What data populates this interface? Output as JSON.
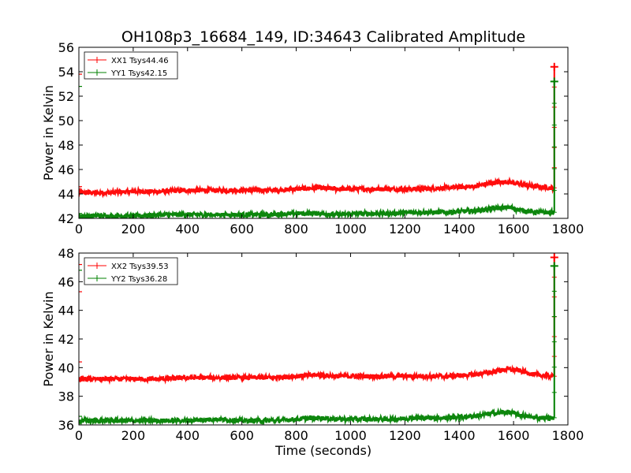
{
  "figure": {
    "title": "OH108p3_16684_149, ID:34643 Calibrated Amplitude",
    "xlabel": "Time (seconds)"
  },
  "colors": {
    "xx": "#ff0000",
    "yy": "#008000"
  },
  "chart_data": [
    {
      "type": "line",
      "ylabel": "Power in Kelvin",
      "xlim": [
        0,
        1800
      ],
      "ylim": [
        42,
        56
      ],
      "xticks": [
        "0",
        "200",
        "400",
        "600",
        "800",
        "1000",
        "1200",
        "1400",
        "1600",
        "1800"
      ],
      "yticks": [
        "42",
        "44",
        "46",
        "48",
        "50",
        "52",
        "54",
        "56"
      ],
      "legend_position": "top-left",
      "series": [
        {
          "name": "XX1 Tsys44.46",
          "color": "#ff0000",
          "x": [
            0,
            100,
            200,
            300,
            400,
            500,
            600,
            700,
            800,
            880,
            950,
            1050,
            1150,
            1250,
            1350,
            1450,
            1520,
            1580,
            1620,
            1680,
            1740,
            1750
          ],
          "y": [
            44.1,
            44.1,
            44.2,
            44.2,
            44.3,
            44.3,
            44.3,
            44.3,
            44.4,
            44.5,
            44.4,
            44.4,
            44.4,
            44.4,
            44.5,
            44.6,
            44.9,
            45.0,
            44.8,
            44.6,
            44.5,
            44.5
          ],
          "spike": {
            "x": 1750,
            "y": 54.4
          },
          "start_marks": [
            53.8,
            44.6
          ]
        },
        {
          "name": "YY1 Tsys42.15",
          "color": "#008000",
          "x": [
            0,
            100,
            200,
            300,
            400,
            500,
            600,
            700,
            800,
            880,
            950,
            1050,
            1150,
            1250,
            1350,
            1450,
            1520,
            1580,
            1620,
            1680,
            1740,
            1750
          ],
          "y": [
            42.2,
            42.2,
            42.2,
            42.3,
            42.3,
            42.3,
            42.3,
            42.3,
            42.4,
            42.4,
            42.3,
            42.4,
            42.4,
            42.5,
            42.5,
            42.6,
            42.8,
            42.9,
            42.7,
            42.5,
            42.5,
            42.5
          ],
          "spike": {
            "x": 1750,
            "y": 53.2
          },
          "start_marks": [
            52.8,
            42.4
          ]
        }
      ]
    },
    {
      "type": "line",
      "ylabel": "Power in Kelvin",
      "xlabel": "Time (seconds)",
      "xlim": [
        0,
        1800
      ],
      "ylim": [
        36,
        48
      ],
      "xticks": [
        "0",
        "200",
        "400",
        "600",
        "800",
        "1000",
        "1200",
        "1400",
        "1600",
        "1800"
      ],
      "yticks": [
        "36",
        "38",
        "40",
        "42",
        "44",
        "46",
        "48"
      ],
      "legend_position": "top-left",
      "series": [
        {
          "name": "XX2 Tsys39.53",
          "color": "#ff0000",
          "x": [
            0,
            100,
            200,
            300,
            400,
            500,
            600,
            700,
            800,
            880,
            950,
            1050,
            1150,
            1250,
            1350,
            1450,
            1520,
            1580,
            1620,
            1680,
            1740,
            1750
          ],
          "y": [
            39.2,
            39.2,
            39.2,
            39.2,
            39.3,
            39.3,
            39.3,
            39.3,
            39.4,
            39.5,
            39.4,
            39.4,
            39.4,
            39.4,
            39.4,
            39.5,
            39.7,
            39.9,
            39.8,
            39.5,
            39.4,
            39.4
          ],
          "spike": {
            "x": 1750,
            "y": 47.7
          },
          "start_marks": [
            47.2,
            45.3,
            40.4
          ]
        },
        {
          "name": "YY2 Tsys36.28",
          "color": "#008000",
          "x": [
            0,
            100,
            200,
            300,
            400,
            500,
            600,
            700,
            800,
            880,
            950,
            1050,
            1150,
            1250,
            1350,
            1450,
            1520,
            1580,
            1620,
            1680,
            1740,
            1750
          ],
          "y": [
            36.3,
            36.3,
            36.3,
            36.3,
            36.3,
            36.4,
            36.3,
            36.3,
            36.4,
            36.5,
            36.4,
            36.4,
            36.4,
            36.5,
            36.5,
            36.6,
            36.8,
            36.9,
            36.7,
            36.5,
            36.5,
            36.5
          ],
          "spike": {
            "x": 1750,
            "y": 47.1
          },
          "start_marks": [
            46.8,
            36.6
          ]
        }
      ]
    }
  ]
}
